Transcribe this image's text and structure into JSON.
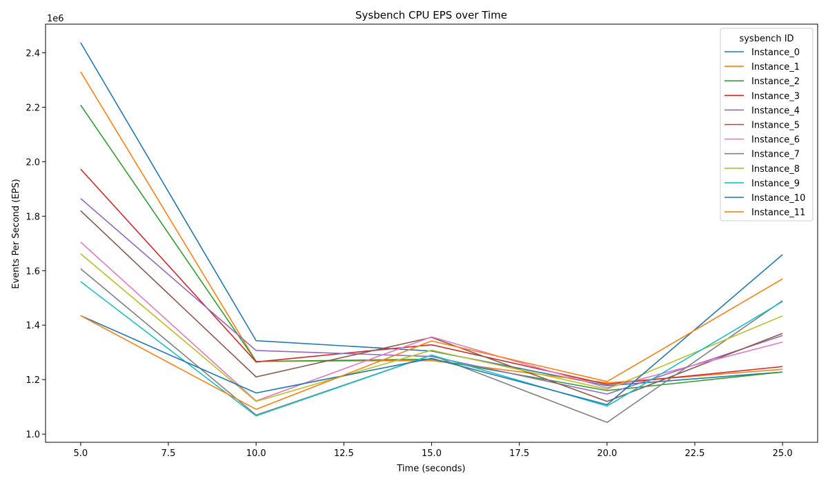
{
  "chart_data": {
    "type": "line",
    "title": "Sysbench CPU EPS over Time",
    "xlabel": "Time (seconds)",
    "ylabel": "Events Per Second (EPS)",
    "y_multiplier_label": "1e6",
    "xlim": [
      4.0,
      26.0
    ],
    "ylim": [
      0.97,
      2.505
    ],
    "x_ticks": [
      5.0,
      7.5,
      10.0,
      12.5,
      15.0,
      17.5,
      20.0,
      22.5,
      25.0
    ],
    "x_tick_labels": [
      "5.0",
      "7.5",
      "10.0",
      "12.5",
      "15.0",
      "17.5",
      "20.0",
      "22.5",
      "25.0"
    ],
    "y_ticks": [
      1.0,
      1.2,
      1.4,
      1.6,
      1.8,
      2.0,
      2.2,
      2.4
    ],
    "y_tick_labels": [
      "1.0",
      "1.2",
      "1.4",
      "1.6",
      "1.8",
      "2.0",
      "2.2",
      "2.4"
    ],
    "grid": false,
    "legend_title": "sysbench ID",
    "legend_position": "top-right",
    "x": [
      5,
      10,
      15,
      20,
      25
    ],
    "series": [
      {
        "name": "Instance_0",
        "color": "#1f77b4",
        "values": [
          2.437,
          1.343,
          1.305,
          1.178,
          1.228
        ]
      },
      {
        "name": "Instance_1",
        "color": "#ff7f0e",
        "values": [
          2.33,
          1.267,
          1.27,
          1.188,
          1.238
        ]
      },
      {
        "name": "Instance_2",
        "color": "#2ca02c",
        "values": [
          2.208,
          1.267,
          1.275,
          1.16,
          1.228
        ]
      },
      {
        "name": "Instance_3",
        "color": "#d62728",
        "values": [
          1.973,
          1.265,
          1.328,
          1.183,
          1.248
        ]
      },
      {
        "name": "Instance_4",
        "color": "#9467bd",
        "values": [
          1.865,
          1.307,
          1.285,
          1.147,
          1.362
        ]
      },
      {
        "name": "Instance_5",
        "color": "#8c564b",
        "values": [
          1.82,
          1.21,
          1.355,
          1.12,
          1.37
        ]
      },
      {
        "name": "Instance_6",
        "color": "#e377c2",
        "values": [
          1.705,
          1.122,
          1.357,
          1.17,
          1.338
        ]
      },
      {
        "name": "Instance_7",
        "color": "#7f7f7f",
        "values": [
          1.607,
          1.07,
          1.29,
          1.043,
          1.49
        ]
      },
      {
        "name": "Instance_8",
        "color": "#bcbd22",
        "values": [
          1.662,
          1.12,
          1.308,
          1.165,
          1.434
        ]
      },
      {
        "name": "Instance_9",
        "color": "#17becf",
        "values": [
          1.56,
          1.067,
          1.29,
          1.103,
          1.487
        ]
      },
      {
        "name": "Instance_10",
        "color": "#1f77b4",
        "values": [
          1.435,
          1.151,
          1.278,
          1.108,
          1.659
        ]
      },
      {
        "name": "Instance_11",
        "color": "#ff7f0e",
        "values": [
          1.435,
          1.091,
          1.342,
          1.193,
          1.57
        ]
      }
    ]
  }
}
